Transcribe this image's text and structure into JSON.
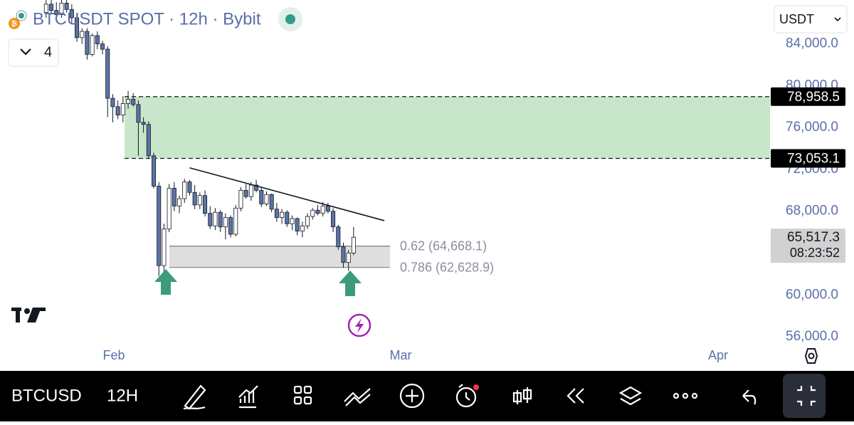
{
  "header": {
    "title": "BTCUSDT SPOT · 12h · Bybit",
    "indicator_count": "4",
    "currency": "USDT"
  },
  "chart": {
    "type": "candlestick",
    "xlim": [
      -9,
      141.25
    ],
    "ylim": [
      52800,
      88200
    ],
    "yticks": [
      {
        "value": 84000,
        "label": "84,000.0"
      },
      {
        "value": 80000,
        "label": "80,000.0"
      },
      {
        "value": 76000,
        "label": "76,000.0"
      },
      {
        "value": 72000,
        "label": "72,000.0"
      },
      {
        "value": 68000,
        "label": "68,000.0"
      },
      {
        "value": 60000,
        "label": "60,000.0"
      },
      {
        "value": 56000,
        "label": "56,000.0"
      }
    ],
    "x_labels": [
      "Feb",
      "Mar",
      "Apr"
    ],
    "up_color": "#ffffff",
    "down_color": "#5b73a6",
    "open": [
      87000,
      87800,
      87200,
      86800,
      87900,
      87300,
      86500,
      84600,
      85200,
      83000,
      84800,
      84000,
      83500,
      78800,
      78000,
      77200,
      78300,
      78700,
      78200,
      76500,
      76300,
      73300,
      70400,
      62800,
      66300,
      70200,
      68500,
      69200,
      70800,
      69800,
      68600,
      69500,
      67800,
      66600,
      67900,
      66500,
      67400,
      65800,
      68300,
      70000,
      69400,
      70500,
      70000,
      68700,
      69600,
      68200,
      67400,
      67900,
      66800,
      67300,
      66100,
      66600,
      67500,
      68100,
      67800,
      68500,
      68000,
      66500,
      64600,
      63100,
      64000
    ],
    "high": [
      88500,
      88200,
      88000,
      88200,
      88300,
      87800,
      86800,
      85500,
      85500,
      85000,
      85200,
      84300,
      83800,
      79200,
      78600,
      79000,
      79500,
      79300,
      78600,
      77000,
      76600,
      73600,
      70800,
      66800,
      70600,
      70800,
      69500,
      71100,
      71000,
      70500,
      69800,
      70000,
      68500,
      68300,
      68100,
      67800,
      67600,
      68600,
      70300,
      70600,
      70800,
      71000,
      70300,
      69900,
      69700,
      68800,
      68200,
      68100,
      67600,
      67400,
      67000,
      67800,
      68300,
      68600,
      68900,
      68800,
      68300,
      66700,
      65000,
      64300,
      66500
    ],
    "low": [
      86500,
      86800,
      86400,
      86500,
      87000,
      86000,
      84200,
      84000,
      82500,
      82800,
      83500,
      83000,
      77000,
      76500,
      76800,
      76500,
      77800,
      78000,
      73300,
      75500,
      73000,
      70200,
      61800,
      61800,
      66000,
      68000,
      67800,
      68800,
      69500,
      68200,
      68200,
      67500,
      66300,
      66200,
      66000,
      65300,
      65500,
      65600,
      68000,
      69200,
      69000,
      69800,
      68400,
      68500,
      67900,
      67000,
      66800,
      66500,
      66200,
      65700,
      65500,
      66300,
      67200,
      67600,
      67500,
      67800,
      66000,
      64300,
      62600,
      62300,
      63800
    ],
    "close": [
      87800,
      87200,
      86800,
      87900,
      87300,
      86500,
      84600,
      85200,
      83000,
      84800,
      84000,
      83500,
      78800,
      78000,
      77200,
      78300,
      78700,
      78200,
      76500,
      76300,
      73300,
      70400,
      62800,
      66300,
      70200,
      68500,
      69200,
      70800,
      69800,
      68600,
      69500,
      67800,
      66600,
      67900,
      66500,
      67400,
      65800,
      68300,
      70000,
      69400,
      70500,
      70000,
      68700,
      69600,
      68200,
      67400,
      67900,
      66800,
      67300,
      66100,
      66600,
      67500,
      68100,
      67800,
      68500,
      68000,
      66500,
      64600,
      63100,
      64000,
      65517.3
    ],
    "green_zone": {
      "values": [
        78958.5,
        73053.1
      ],
      "value_labels": [
        "78,958.5",
        "73,053.1"
      ],
      "color": "#c8e6c9"
    },
    "fib_zone": {
      "values": [
        64668.1,
        62628.9
      ],
      "value_labels": [
        "0.62 (64,668.1)",
        "0.786 (62,628.9)"
      ],
      "color": "#dedede"
    },
    "trend_line": {
      "x": [
        28,
        66
      ],
      "values": [
        72150,
        67100
      ]
    },
    "price_label": {
      "value": 65517.3,
      "label": "65,517.3",
      "countdown": "08:23:52"
    }
  },
  "toolbar": {
    "symbol": "BTCUSD",
    "interval": "12H"
  }
}
